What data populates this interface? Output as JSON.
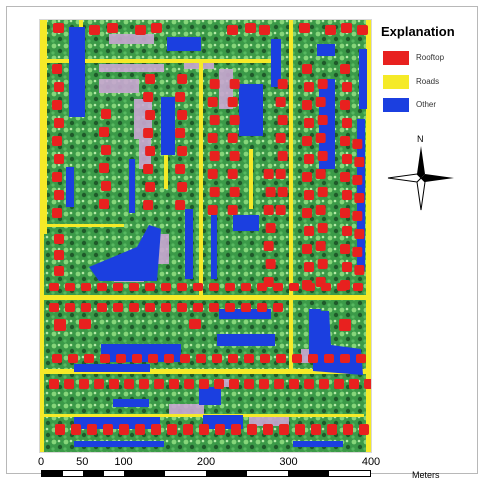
{
  "legend": {
    "title": "Explanation",
    "items": [
      {
        "label": "Rooftop",
        "color": "#e8211f"
      },
      {
        "label": "Roads",
        "color": "#f5ea28"
      },
      {
        "label": "Other",
        "color": "#1b3fe0"
      }
    ]
  },
  "north_arrow": {
    "letter": "N"
  },
  "scale": {
    "ticks": [
      "0",
      "50",
      "100",
      "200",
      "300",
      "400"
    ],
    "tick_values": [
      0,
      50,
      100,
      200,
      300,
      400
    ],
    "max": 400,
    "unit": "Meters"
  },
  "colors": {
    "vegetation": "#2f8a3f",
    "vegetation_light": "#7fcf72",
    "bare": "#c9a6d2",
    "shadow": "#18301c",
    "map_frame": "#d8d8d8"
  }
}
